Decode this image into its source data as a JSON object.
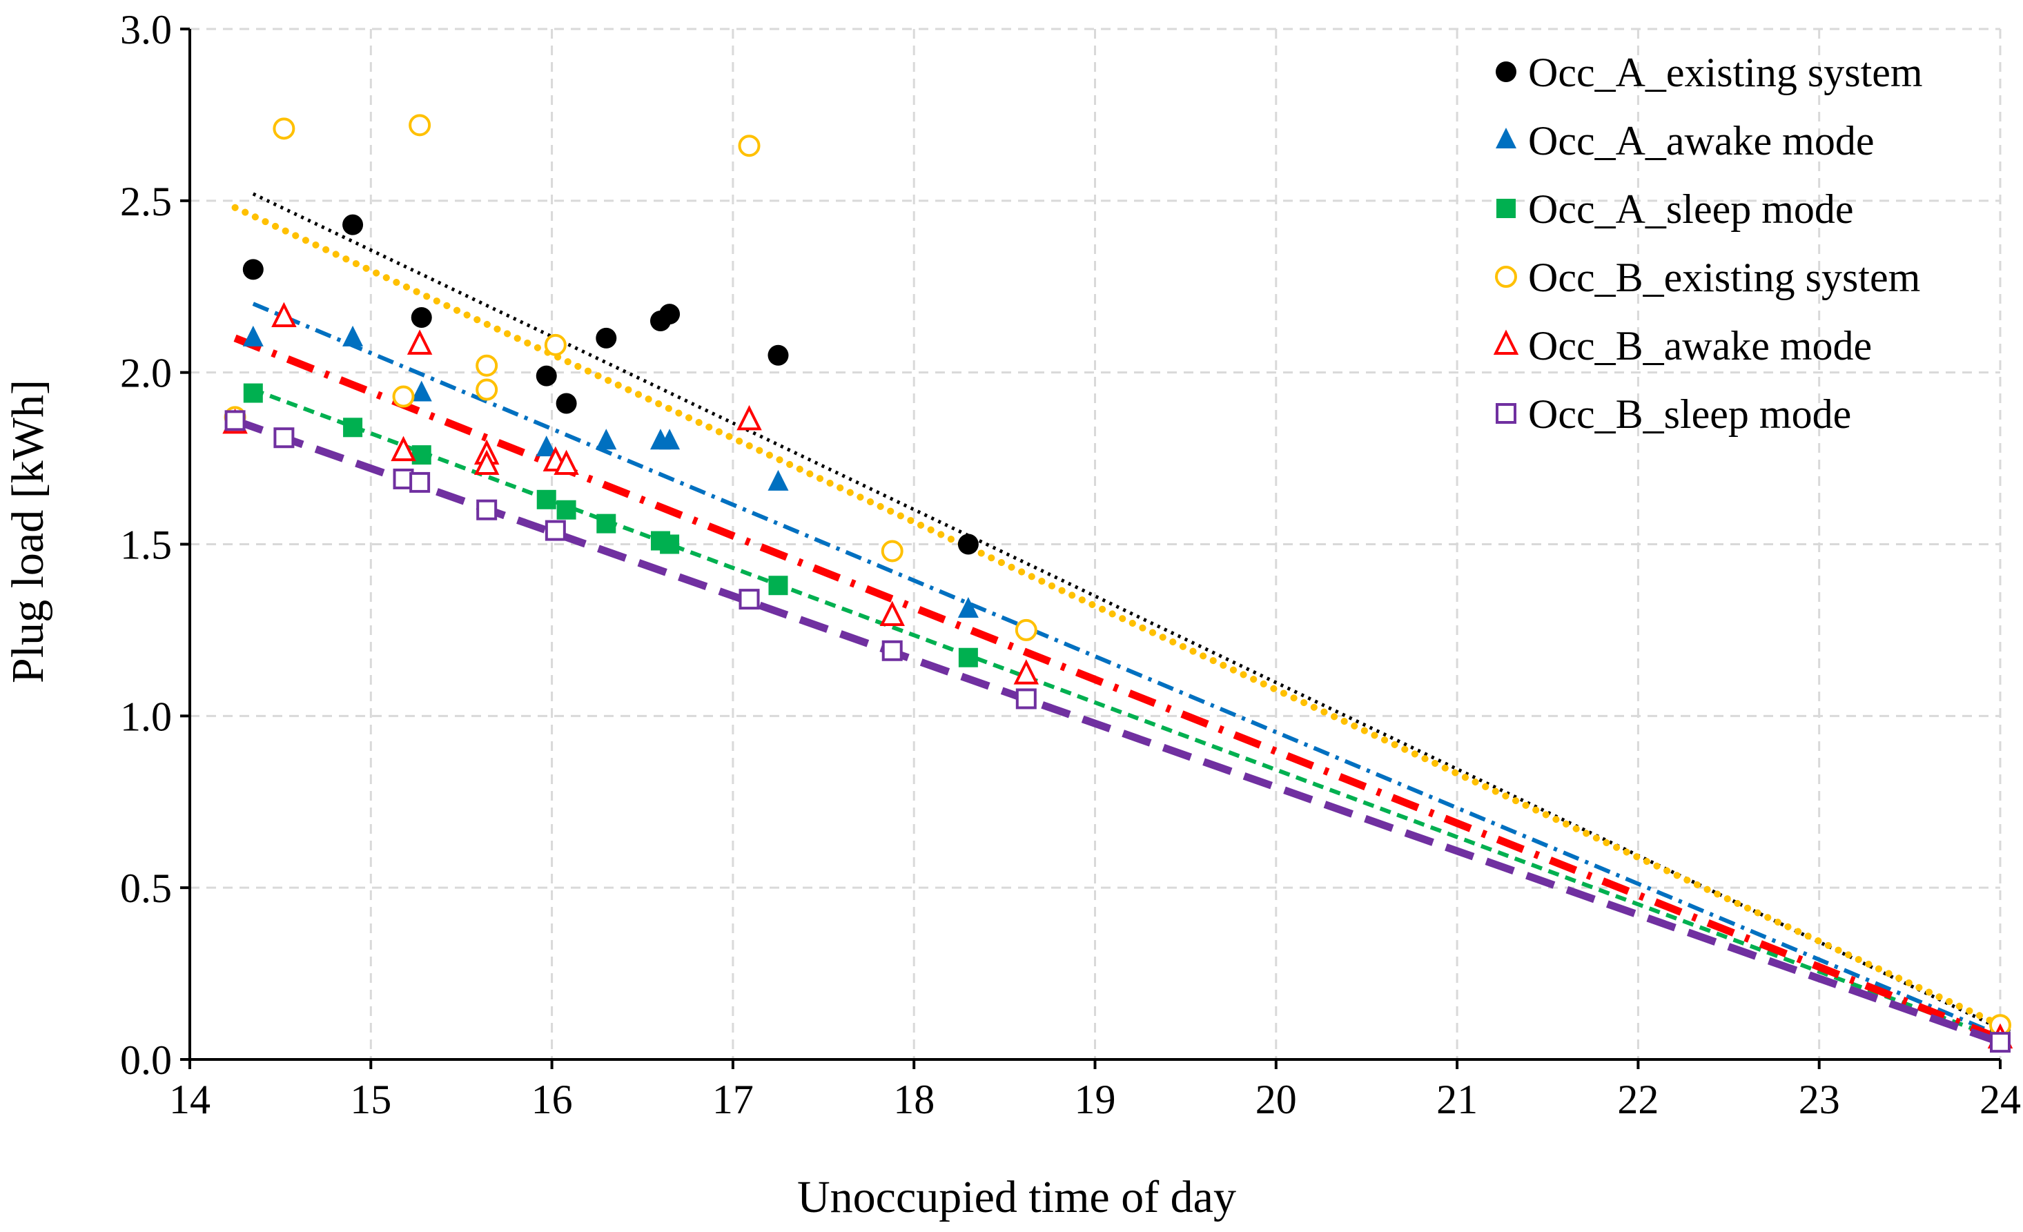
{
  "chart_data": {
    "type": "scatter",
    "title": "",
    "xlabel": "Unoccupied time of day",
    "ylabel": "Plug load [kWh]",
    "xlim": [
      14,
      24
    ],
    "ylim": [
      0,
      3
    ],
    "x_ticks": [
      "14",
      "15",
      "16",
      "17",
      "18",
      "19",
      "20",
      "21",
      "22",
      "23",
      "24"
    ],
    "y_ticks": [
      "0.0",
      "0.5",
      "1.0",
      "1.5",
      "2.0",
      "2.5",
      "3.0"
    ],
    "grid": true,
    "legend_position": "top-right",
    "series": [
      {
        "name": "Occ_A_existing system",
        "marker": "circle-filled",
        "color": "#000000",
        "trendline": {
          "style": "dotted",
          "color": "#000000",
          "x": [
            14.35,
            24
          ],
          "y": [
            2.52,
            0.09
          ]
        },
        "x": [
          14.35,
          14.9,
          15.28,
          15.97,
          16.08,
          16.3,
          16.6,
          16.65,
          17.25,
          18.3,
          24.0
        ],
        "y": [
          2.3,
          2.43,
          2.16,
          1.99,
          1.91,
          2.1,
          2.15,
          2.17,
          2.05,
          1.5,
          0.09
        ]
      },
      {
        "name": "Occ_A_awake mode",
        "marker": "triangle-filled",
        "color": "#0070C0",
        "trendline": {
          "style": "dash-dot-dot",
          "color": "#0070C0",
          "x": [
            14.35,
            24
          ],
          "y": [
            2.2,
            0.07
          ]
        },
        "x": [
          14.35,
          14.9,
          15.28,
          15.97,
          16.08,
          16.3,
          16.6,
          16.65,
          17.25,
          18.3,
          24.0
        ],
        "y": [
          2.1,
          2.1,
          1.94,
          1.78,
          1.73,
          1.8,
          1.8,
          1.8,
          1.68,
          1.31,
          0.07
        ]
      },
      {
        "name": "Occ_A_sleep mode",
        "marker": "square-filled",
        "color": "#00B050",
        "trendline": {
          "style": "dashed",
          "color": "#00B050",
          "x": [
            14.35,
            24
          ],
          "y": [
            1.95,
            0.06
          ]
        },
        "x": [
          14.35,
          14.9,
          15.28,
          15.97,
          16.08,
          16.3,
          16.6,
          16.65,
          17.25,
          18.3,
          24.0
        ],
        "y": [
          1.94,
          1.84,
          1.76,
          1.63,
          1.6,
          1.56,
          1.51,
          1.5,
          1.38,
          1.17,
          0.06
        ]
      },
      {
        "name": "Occ_B_existing system",
        "marker": "circle-open",
        "color": "#FFC000",
        "trendline": {
          "style": "round-dotted",
          "color": "#FFC000",
          "x": [
            14.25,
            24
          ],
          "y": [
            2.48,
            0.1
          ]
        },
        "x": [
          14.25,
          14.52,
          15.18,
          15.27,
          15.64,
          15.64,
          16.02,
          17.09,
          17.88,
          18.62,
          24.0
        ],
        "y": [
          1.87,
          2.71,
          1.93,
          2.72,
          2.02,
          1.95,
          2.08,
          2.66,
          1.48,
          1.25,
          0.1
        ]
      },
      {
        "name": "Occ_B_awake mode",
        "marker": "triangle-open",
        "color": "#FF0000",
        "trendline": {
          "style": "long-dash-dot",
          "color": "#FF0000",
          "x": [
            14.25,
            24
          ],
          "y": [
            2.1,
            0.06
          ]
        },
        "x": [
          14.25,
          14.52,
          15.18,
          15.27,
          15.64,
          15.64,
          16.02,
          16.08,
          17.09,
          17.88,
          18.62,
          24.0
        ],
        "y": [
          1.85,
          2.16,
          1.77,
          2.08,
          1.76,
          1.73,
          1.74,
          1.73,
          1.86,
          1.29,
          1.12,
          0.06
        ]
      },
      {
        "name": "Occ_B_sleep mode",
        "marker": "square-open",
        "color": "#7030A0",
        "trendline": {
          "style": "long-dashed",
          "color": "#7030A0",
          "x": [
            14.25,
            24
          ],
          "y": [
            1.86,
            0.05
          ]
        },
        "x": [
          14.25,
          14.52,
          15.18,
          15.27,
          15.64,
          16.02,
          17.09,
          17.88,
          18.62,
          24.0
        ],
        "y": [
          1.86,
          1.81,
          1.69,
          1.68,
          1.6,
          1.54,
          1.34,
          1.19,
          1.05,
          0.05
        ]
      }
    ]
  }
}
